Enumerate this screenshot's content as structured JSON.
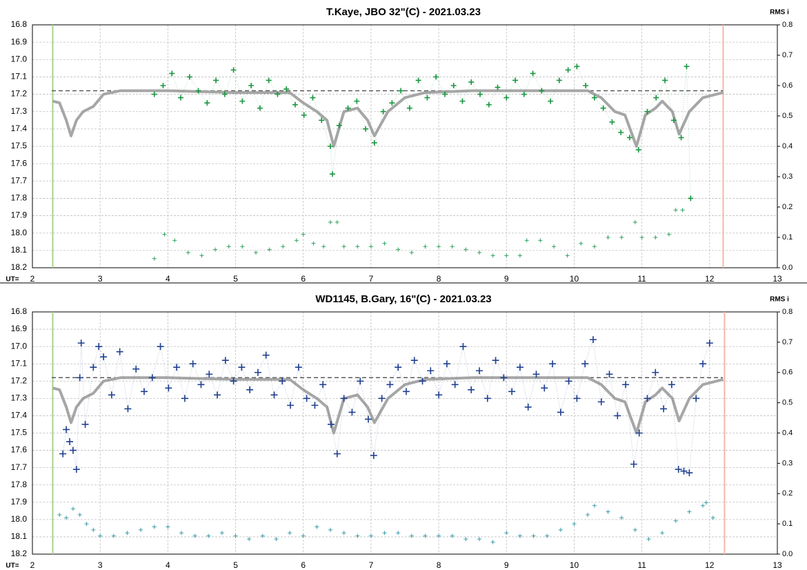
{
  "chart_data": [
    {
      "type": "scatter",
      "title": "T.Kaye, JBO 32\"(C) - 2021.03.23",
      "x_label": "UT=",
      "y2_label": "RMS i",
      "xlim": [
        2,
        13
      ],
      "xticks": [
        2,
        3,
        4,
        5,
        6,
        7,
        8,
        9,
        10,
        11,
        12,
        13
      ],
      "ylim": [
        18.2,
        16.8
      ],
      "yticks": [
        16.8,
        16.9,
        {
          "value": 17,
          "label": "17.0"
        },
        17.1,
        17.2,
        17.3,
        17.4,
        17.5,
        17.6,
        17.7,
        17.8,
        17.9,
        {
          "value": 18,
          "label": "18.0"
        },
        18.1,
        18.2
      ],
      "y2lim": [
        0,
        0.8
      ],
      "y2ticks": [
        {
          "value": 0,
          "label": "0.0"
        },
        0.1,
        0.2,
        0.3,
        0.4,
        0.5,
        0.6,
        0.7,
        0.8
      ],
      "grid": true,
      "hline": 17.18,
      "vlines": [
        {
          "value": 2.3,
          "color": "#a9d18e"
        },
        {
          "value": 12.2,
          "color": "#f4b6a8"
        }
      ],
      "series": [
        {
          "color": "#a6a6a6",
          "line_width": 4,
          "x": [
            2.3,
            2.4,
            2.5,
            2.57,
            2.65,
            2.75,
            2.9,
            3.05,
            3.3,
            4,
            5,
            5.8,
            6,
            6.2,
            6.35,
            6.45,
            6.6,
            6.8,
            6.95,
            7.05,
            7.25,
            7.5,
            7.8,
            8.5,
            9.5,
            10.2,
            10.4,
            10.6,
            10.75,
            10.92,
            11.05,
            11.2,
            11.3,
            11.45,
            11.55,
            11.7,
            11.9,
            12.2
          ],
          "values": [
            17.24,
            17.25,
            17.35,
            17.44,
            17.35,
            17.3,
            17.27,
            17.2,
            17.18,
            17.18,
            17.19,
            17.19,
            17.25,
            17.3,
            17.35,
            17.5,
            17.3,
            17.28,
            17.35,
            17.44,
            17.3,
            17.22,
            17.19,
            17.18,
            17.18,
            17.18,
            17.22,
            17.3,
            17.32,
            17.5,
            17.32,
            17.28,
            17.24,
            17.3,
            17.43,
            17.3,
            17.22,
            17.19
          ]
        },
        {
          "color": "#1a9641",
          "marker": "plus",
          "marker_size": 4,
          "connect": "dotted",
          "x": [
            3.8,
            3.93,
            4.06,
            4.19,
            4.32,
            4.45,
            4.58,
            4.71,
            4.84,
            4.97,
            5.1,
            5.23,
            5.36,
            5.49,
            5.62,
            5.75,
            5.88,
            6.01,
            6.14,
            6.27,
            6.4,
            6.43,
            6.53,
            6.66,
            6.79,
            6.92,
            7.05,
            7.18,
            7.31,
            7.44,
            7.57,
            7.7,
            7.83,
            7.96,
            8.09,
            8.22,
            8.35,
            8.48,
            8.61,
            8.74,
            8.87,
            9,
            9.13,
            9.26,
            9.39,
            9.52,
            9.65,
            9.78,
            9.91,
            10.04,
            10.17,
            10.3,
            10.43,
            10.56,
            10.69,
            10.82,
            10.95,
            11.08,
            11.21,
            11.34,
            11.47,
            11.58,
            11.66,
            11.72
          ],
          "values": [
            17.2,
            17.15,
            17.08,
            17.22,
            17.1,
            17.18,
            17.25,
            17.12,
            17.2,
            17.06,
            17.24,
            17.15,
            17.28,
            17.12,
            17.2,
            17.17,
            17.26,
            17.32,
            17.22,
            17.35,
            17.5,
            17.66,
            17.38,
            17.28,
            17.24,
            17.4,
            17.48,
            17.3,
            17.25,
            17.18,
            17.28,
            17.12,
            17.22,
            17.1,
            17.2,
            17.15,
            17.24,
            17.13,
            17.2,
            17.26,
            17.16,
            17.22,
            17.12,
            17.2,
            17.08,
            17.18,
            17.24,
            17.12,
            17.06,
            17.04,
            17.15,
            17.22,
            17.28,
            17.36,
            17.42,
            17.45,
            17.52,
            17.3,
            17.22,
            17.12,
            17.35,
            17.45,
            17.04,
            17.8
          ]
        },
        {
          "color": "#2ca25f",
          "marker": "plus",
          "marker_size": 3,
          "axis": "y2",
          "x": [
            3.8,
            3.95,
            4.1,
            4.3,
            4.5,
            4.7,
            4.9,
            5.1,
            5.3,
            5.5,
            5.7,
            5.9,
            6,
            6.15,
            6.3,
            6.4,
            6.5,
            6.6,
            6.8,
            7,
            7.2,
            7.4,
            7.6,
            7.8,
            8,
            8.2,
            8.4,
            8.6,
            8.8,
            9,
            9.2,
            9.3,
            9.5,
            9.7,
            9.9,
            10.1,
            10.3,
            10.5,
            10.7,
            10.9,
            11,
            11.2,
            11.4,
            11.5,
            11.6
          ],
          "values": [
            0.03,
            0.11,
            0.09,
            0.05,
            0.04,
            0.06,
            0.07,
            0.07,
            0.05,
            0.06,
            0.07,
            0.09,
            0.11,
            0.08,
            0.07,
            0.15,
            0.15,
            0.07,
            0.07,
            0.07,
            0.08,
            0.06,
            0.05,
            0.07,
            0.07,
            0.07,
            0.06,
            0.05,
            0.04,
            0.04,
            0.04,
            0.09,
            0.09,
            0.07,
            0.04,
            0.08,
            0.07,
            0.1,
            0.1,
            0.15,
            0.1,
            0.1,
            0.11,
            0.19,
            0.19
          ]
        }
      ]
    },
    {
      "type": "scatter",
      "title": "WD1145, B.Gary, 16\"(C) - 2021.03.23",
      "x_label": "UT=",
      "y2_label": "RMS i",
      "xlim": [
        2,
        13
      ],
      "xticks": [
        2,
        3,
        4,
        5,
        6,
        7,
        8,
        9,
        10,
        11,
        12,
        13
      ],
      "ylim": [
        18.2,
        16.8
      ],
      "yticks": [
        16.8,
        16.9,
        {
          "value": 17,
          "label": "17.0"
        },
        17.1,
        17.2,
        17.3,
        17.4,
        17.5,
        17.6,
        17.7,
        17.8,
        17.9,
        {
          "value": 18,
          "label": "18.0"
        },
        18.1,
        18.2
      ],
      "y2lim": [
        0,
        0.8
      ],
      "y2ticks": [
        {
          "value": 0,
          "label": "0.0"
        },
        0.1,
        0.2,
        0.3,
        0.4,
        0.5,
        0.6,
        0.7,
        0.8
      ],
      "grid": true,
      "hline": 17.18,
      "vlines": [
        {
          "value": 2.3,
          "color": "#a9d18e"
        },
        {
          "value": 12.22,
          "color": "#f4b6a8"
        }
      ],
      "series": [
        {
          "color": "#a6a6a6",
          "line_width": 4,
          "x": [
            2.3,
            2.4,
            2.5,
            2.57,
            2.65,
            2.75,
            2.9,
            3.05,
            3.3,
            4,
            5,
            5.8,
            6,
            6.2,
            6.35,
            6.45,
            6.6,
            6.8,
            6.95,
            7.05,
            7.25,
            7.5,
            7.8,
            8.5,
            9.5,
            10.2,
            10.4,
            10.6,
            10.75,
            10.92,
            11.05,
            11.2,
            11.3,
            11.45,
            11.55,
            11.7,
            11.9,
            12.2
          ],
          "values": [
            17.24,
            17.25,
            17.35,
            17.44,
            17.35,
            17.3,
            17.27,
            17.2,
            17.18,
            17.18,
            17.19,
            17.19,
            17.25,
            17.3,
            17.35,
            17.5,
            17.3,
            17.28,
            17.35,
            17.44,
            17.3,
            17.22,
            17.19,
            17.18,
            17.18,
            17.18,
            17.22,
            17.3,
            17.32,
            17.5,
            17.32,
            17.28,
            17.24,
            17.3,
            17.43,
            17.3,
            17.22,
            17.19
          ]
        },
        {
          "color": "#1f3f8f",
          "marker": "plus",
          "marker_size": 5,
          "connect": "dotted",
          "x": [
            2.45,
            2.5,
            2.55,
            2.6,
            2.65,
            2.7,
            2.72,
            2.78,
            2.9,
            2.98,
            3.05,
            3.17,
            3.29,
            3.41,
            3.53,
            3.65,
            3.77,
            3.89,
            4.01,
            4.13,
            4.25,
            4.37,
            4.49,
            4.61,
            4.73,
            4.85,
            4.97,
            5.09,
            5.21,
            5.33,
            5.45,
            5.57,
            5.69,
            5.81,
            5.93,
            6.05,
            6.17,
            6.29,
            6.41,
            6.5,
            6.6,
            6.72,
            6.84,
            6.96,
            7.04,
            7.16,
            7.28,
            7.4,
            7.52,
            7.64,
            7.76,
            7.88,
            8,
            8.12,
            8.24,
            8.36,
            8.48,
            8.6,
            8.72,
            8.84,
            8.96,
            9.08,
            9.2,
            9.32,
            9.44,
            9.56,
            9.68,
            9.8,
            9.92,
            10.04,
            10.16,
            10.28,
            10.4,
            10.52,
            10.64,
            10.76,
            10.88,
            10.96,
            11.08,
            11.2,
            11.32,
            11.44,
            11.54,
            11.62,
            11.7,
            11.8,
            11.9,
            12
          ],
          "values": [
            17.62,
            17.48,
            17.55,
            17.6,
            17.71,
            17.18,
            16.98,
            17.45,
            17.12,
            17,
            17.06,
            17.28,
            17.03,
            17.36,
            17.13,
            17.26,
            17.18,
            17,
            17.24,
            17.12,
            17.3,
            17.1,
            17.22,
            17.16,
            17.28,
            17.08,
            17.2,
            17.12,
            17.25,
            17.15,
            17.05,
            17.28,
            17.2,
            17.34,
            17.12,
            17.3,
            17.34,
            17.22,
            17.45,
            17.62,
            17.3,
            17.38,
            17.2,
            17.42,
            17.63,
            17.3,
            17.22,
            17.12,
            17.26,
            17.08,
            17.2,
            17.14,
            17.28,
            17.1,
            17.22,
            17,
            17.25,
            17.14,
            17.3,
            17.08,
            17.18,
            17.26,
            17.12,
            17.35,
            17.16,
            17.24,
            17.1,
            17.38,
            17.2,
            17.3,
            17.1,
            16.96,
            17.32,
            17.16,
            17.4,
            17.22,
            17.68,
            17.5,
            17.3,
            17.15,
            17.36,
            17.22,
            17.71,
            17.72,
            17.73,
            17.3,
            17.1,
            16.98
          ]
        },
        {
          "color": "#3a9aa8",
          "marker": "plus",
          "marker_size": 3,
          "axis": "y2",
          "x": [
            2.4,
            2.5,
            2.6,
            2.7,
            2.8,
            2.9,
            3,
            3.2,
            3.4,
            3.6,
            3.8,
            4,
            4.2,
            4.4,
            4.6,
            4.8,
            5,
            5.2,
            5.4,
            5.6,
            5.8,
            6,
            6.2,
            6.4,
            6.6,
            6.8,
            7,
            7.2,
            7.4,
            7.6,
            7.8,
            8,
            8.2,
            8.4,
            8.6,
            8.8,
            9,
            9.2,
            9.4,
            9.6,
            9.8,
            10,
            10.2,
            10.3,
            10.5,
            10.7,
            10.9,
            11.1,
            11.3,
            11.5,
            11.7,
            11.9,
            11.95,
            12.05
          ],
          "values": [
            0.13,
            0.12,
            0.15,
            0.13,
            0.1,
            0.08,
            0.06,
            0.06,
            0.07,
            0.08,
            0.09,
            0.09,
            0.07,
            0.06,
            0.06,
            0.07,
            0.06,
            0.05,
            0.06,
            0.05,
            0.07,
            0.06,
            0.09,
            0.08,
            0.07,
            0.06,
            0.06,
            0.07,
            0.07,
            0.06,
            0.06,
            0.06,
            0.06,
            0.05,
            0.05,
            0.04,
            0.07,
            0.06,
            0.06,
            0.06,
            0.08,
            0.1,
            0.13,
            0.16,
            0.14,
            0.12,
            0.08,
            0.05,
            0.07,
            0.11,
            0.14,
            0.16,
            0.17,
            0.12
          ]
        }
      ]
    }
  ]
}
